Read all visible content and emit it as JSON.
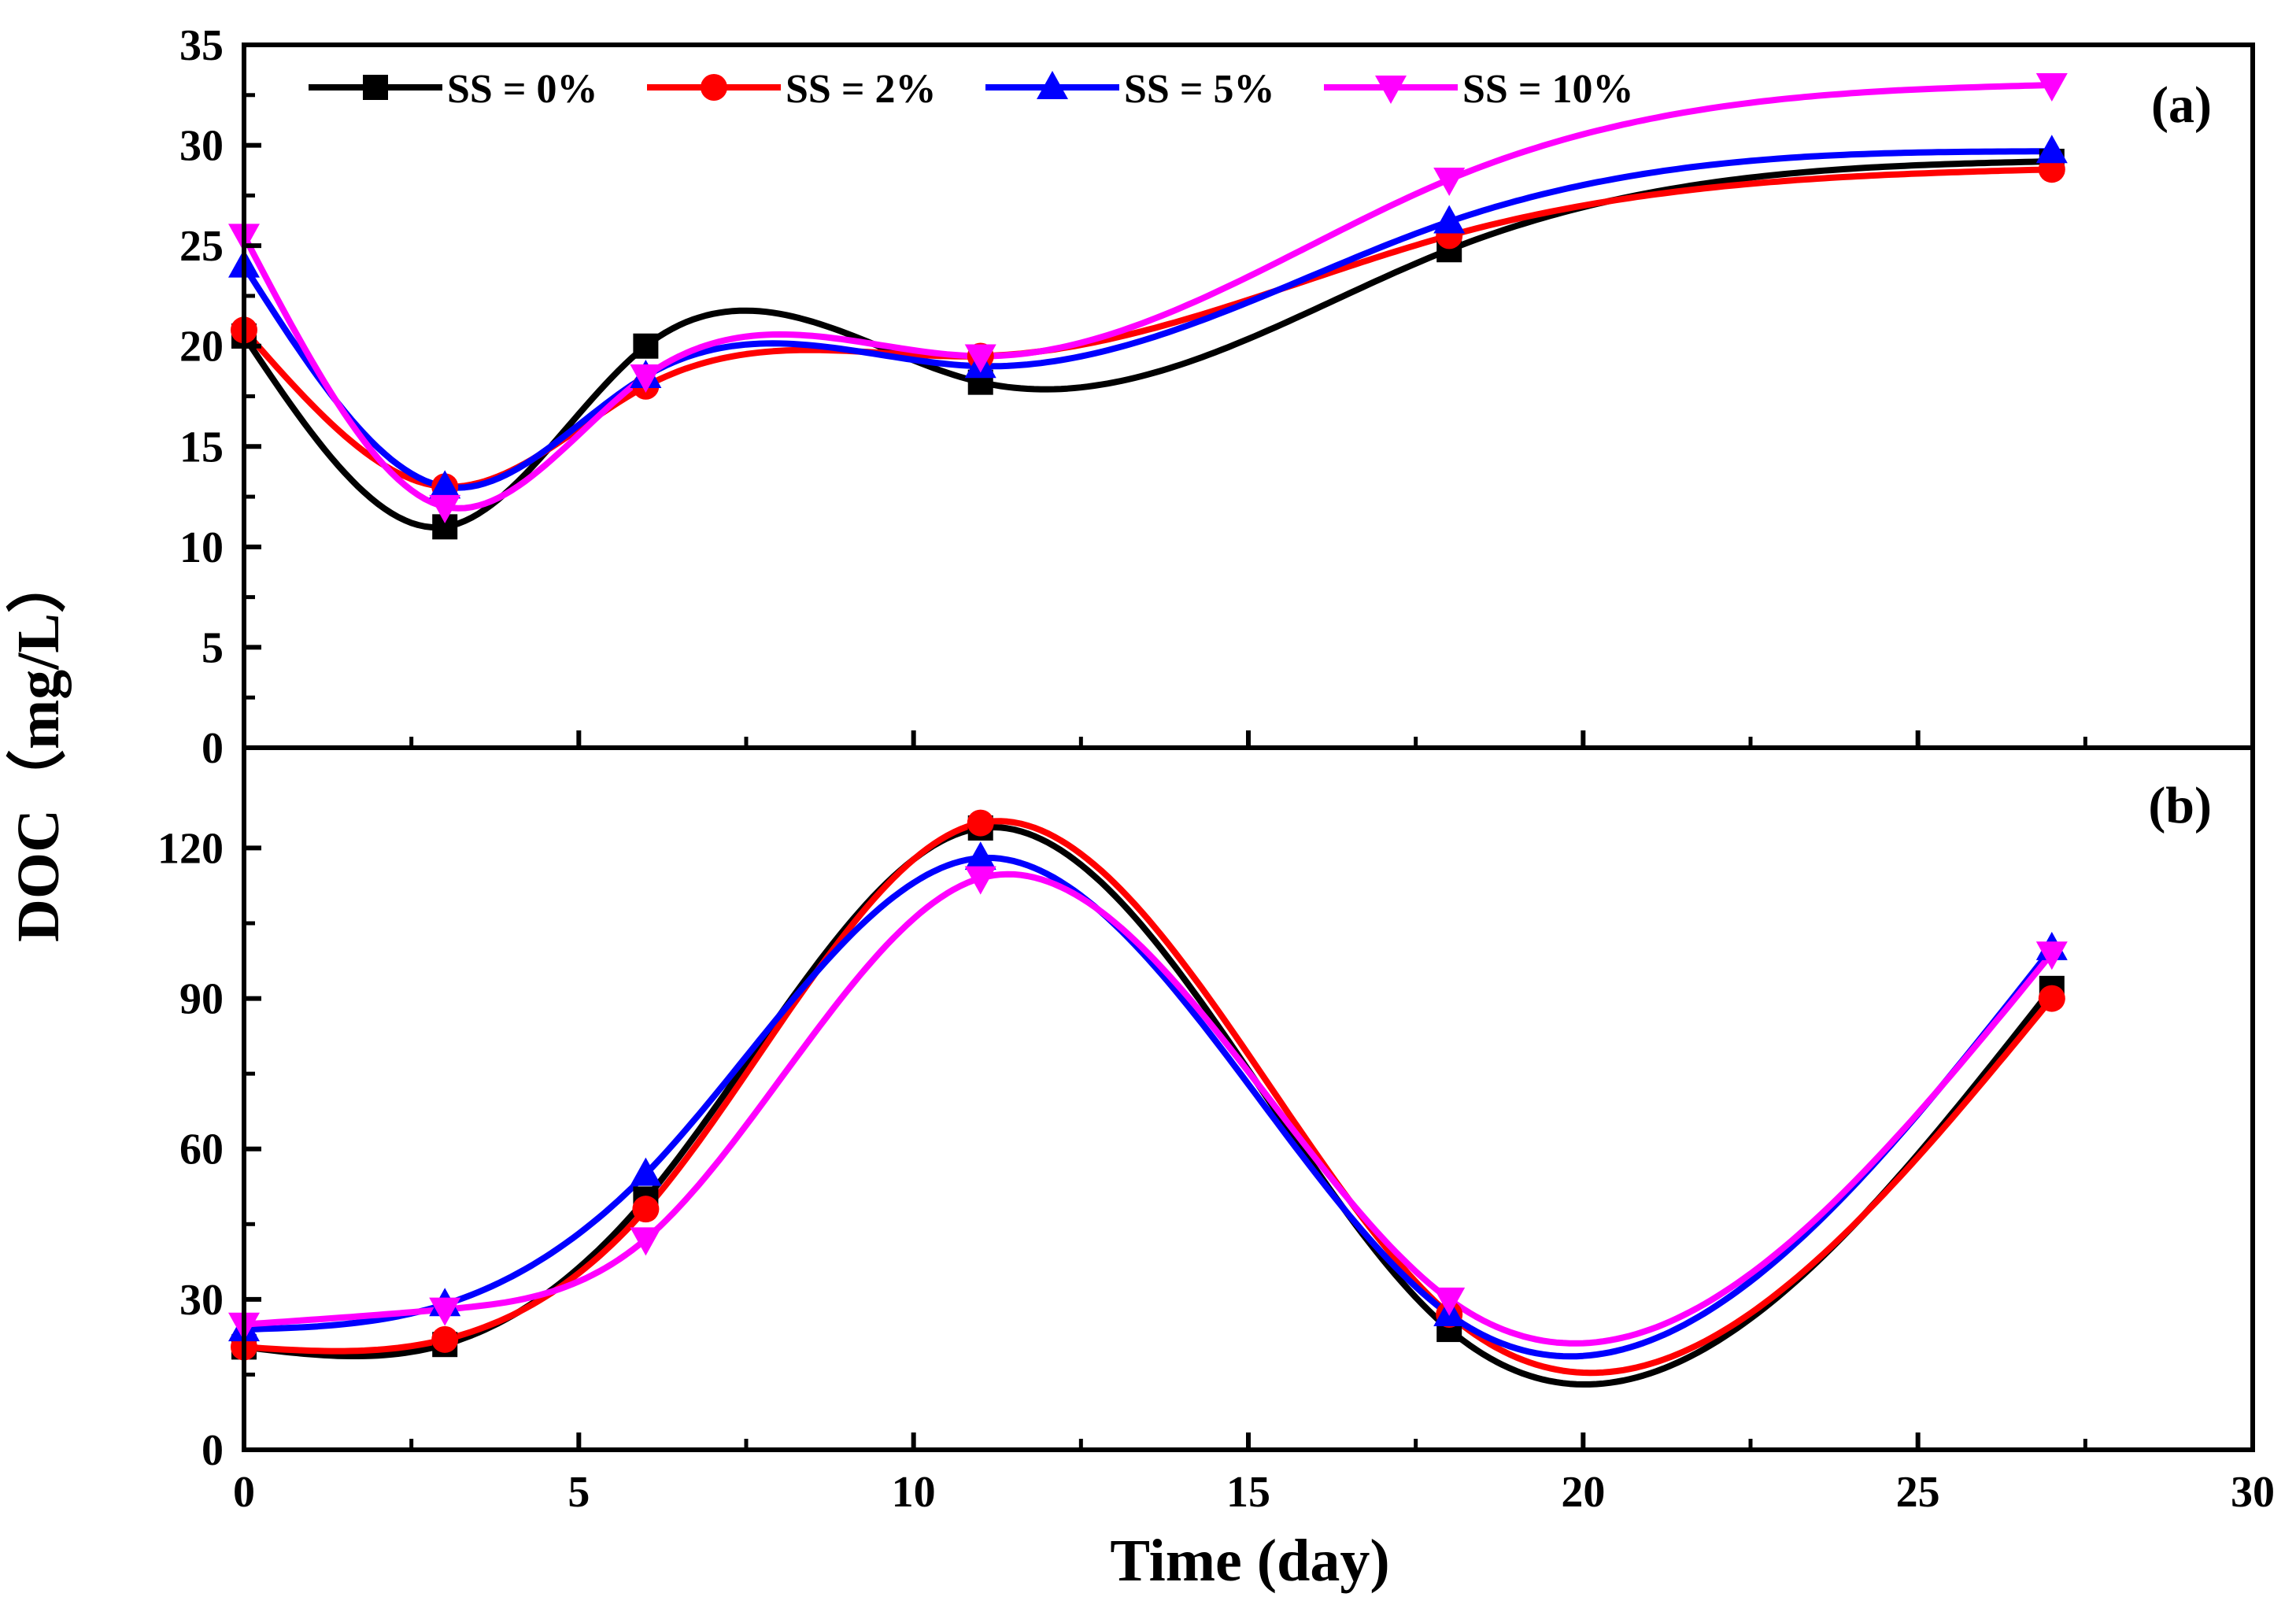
{
  "chart_data": {
    "type": "line",
    "xlabel": "Time (day)",
    "ylabel": "DOC（mg/L）",
    "xlim": [
      0,
      30
    ],
    "xticks": [
      0,
      5,
      10,
      15,
      20,
      25,
      30
    ],
    "legend": {
      "position": "top-left",
      "entries": [
        "SS = 0%",
        "SS = 2%",
        "SS = 5%",
        "SS = 10%"
      ]
    },
    "x": [
      0,
      3,
      6,
      11,
      18,
      27
    ],
    "series_styles": [
      {
        "name": "SS = 0%",
        "color": "#000000",
        "marker": "square"
      },
      {
        "name": "SS = 2%",
        "color": "#ff0000",
        "marker": "circle"
      },
      {
        "name": "SS = 5%",
        "color": "#0000ff",
        "marker": "triangle-up"
      },
      {
        "name": "SS = 10%",
        "color": "#ff00ff",
        "marker": "triangle-down"
      }
    ],
    "panels": [
      {
        "label": "(a)",
        "ylim": [
          0,
          35
        ],
        "yticks": [
          0,
          5,
          10,
          15,
          20,
          25,
          30,
          35
        ],
        "series": [
          {
            "name": "SS = 0%",
            "values": [
              20.5,
              11.0,
              20.0,
              18.2,
              24.8,
              29.2
            ]
          },
          {
            "name": "SS = 2%",
            "values": [
              20.8,
              13.0,
              18.0,
              19.5,
              25.5,
              28.8
            ]
          },
          {
            "name": "SS = 5%",
            "values": [
              24.0,
              13.0,
              18.5,
              19.0,
              26.2,
              29.7
            ]
          },
          {
            "name": "SS = 10%",
            "values": [
              25.5,
              12.0,
              18.5,
              19.5,
              28.3,
              33.0
            ]
          }
        ]
      },
      {
        "label": "(b)",
        "ylim": [
          0,
          140
        ],
        "yticks": [
          0,
          30,
          60,
          90,
          120
        ],
        "series": [
          {
            "name": "SS = 0%",
            "values": [
              20.5,
              21.0,
              50.0,
              124.0,
              24.0,
              92.0
            ]
          },
          {
            "name": "SS = 2%",
            "values": [
              20.5,
              22.0,
              48.0,
              125.0,
              27.0,
              90.0
            ]
          },
          {
            "name": "SS = 5%",
            "values": [
              24.0,
              29.0,
              55.0,
              118.0,
              27.0,
              100.0
            ]
          },
          {
            "name": "SS = 10%",
            "values": [
              25.0,
              28.0,
              42.0,
              114.0,
              30.0,
              99.0
            ]
          }
        ]
      }
    ]
  }
}
